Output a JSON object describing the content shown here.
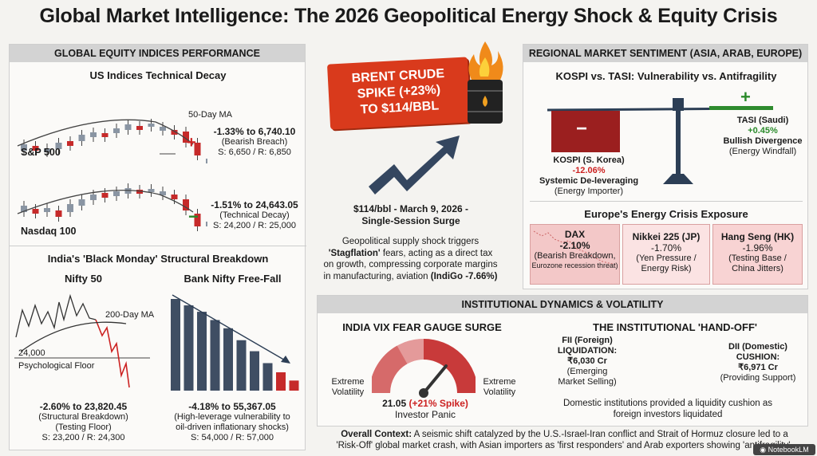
{
  "title": "Global Market Intelligence: The 2026 Geopolitical Energy Shock & Equity Crisis",
  "left": {
    "header": "GLOBAL EQUITY INDICES PERFORMANCE",
    "us_title": "US Indices Technical Decay",
    "ma_label": "50-Day MA",
    "sp500": {
      "name": "S&P 500",
      "change": "-1.33% to 6,740.10",
      "note": "(Bearish Breach)",
      "levels": "S: 6,650 / R: 6,850"
    },
    "nasdaq": {
      "name": "Nasdaq 100",
      "change": "-1.51% to 24,643.05",
      "note": "(Technical Decay)",
      "levels": "S: 24,200 / R: 25,000"
    },
    "india_title": "India's 'Black Monday' Structural Breakdown",
    "nifty": {
      "name": "Nifty 50",
      "ma": "200-Day MA",
      "floor_value": "24,000",
      "floor_label": "Psychological Floor",
      "change": "-2.60% to 23,820.45",
      "note": "(Structural Breakdown)",
      "note2": "(Testing Floor)",
      "levels": "S: 23,200 / R: 24,300"
    },
    "banknifty": {
      "name": "Bank Nifty Free-Fall",
      "change": "-4.18% to 55,367.05",
      "note": "(High-leverage vulnerability to",
      "note2": "oil-driven inflationary shocks)",
      "levels": "S: 54,000 / R: 57,000",
      "bars": [
        100,
        93,
        86,
        77,
        68,
        55,
        43,
        30,
        20,
        11
      ]
    }
  },
  "center": {
    "banner_l1": "BRENT CRUDE",
    "banner_l2": "SPIKE (+23%)",
    "banner_l3": "TO $114/BBL",
    "caption_l1": "$114/bbl - March 9, 2026 -",
    "caption_l2": "Single-Session Surge",
    "body_l1": "Geopolitical supply shock triggers",
    "body_l2_b": "'Stagflation'",
    "body_l2": " fears, acting as a direct tax",
    "body_l3": "on growth, compressing corporate margins",
    "body_l4": "in manufacturing, aviation ",
    "body_l4_b": "(IndiGo -7.66%)"
  },
  "right": {
    "header": "REGIONAL MARKET SENTIMENT (ASIA, ARAB, EUROPE)",
    "scale_title": "KOSPI vs. TASI: Vulnerability vs. Antifragility",
    "minus": "−",
    "plus": "+",
    "kospi": {
      "name": "KOSPI (S. Korea)",
      "change": "-12.06%",
      "l1": "Systemic De-leveraging",
      "l2": "(Energy Importer)"
    },
    "tasi": {
      "name": "TASI (Saudi)",
      "change": "+0.45%",
      "l1": "Bullish Divergence",
      "l2": "(Energy Windfall)"
    },
    "europe_title": "Europe's Energy Crisis Exposure",
    "dax": {
      "name": "DAX",
      "change": "-2.10%",
      "l1": "(Bearish Breakdown,",
      "l2": "Eurozone recession threat)"
    },
    "nikkei": {
      "name": "Nikkei 225 (JP)",
      "change": "-1.70%",
      "l1": "(Yen Pressure /",
      "l2": "Energy Risk)"
    },
    "hangseng": {
      "name": "Hang Seng (HK)",
      "change": "-1.96%",
      "l1": "(Testing Base /",
      "l2": "China Jitters)"
    }
  },
  "bottom": {
    "header": "INSTITUTIONAL DYNAMICS & VOLATILITY",
    "vix_title": "INDIA VIX FEAR GAUGE SURGE",
    "extreme_l1": "Extreme",
    "extreme_l2": "Volatility",
    "vix_value": "21.05 ",
    "vix_spike": "(+21% Spike)",
    "vix_label": "Investor Panic",
    "vix_fraction": 0.72,
    "handoff_title": "THE INSTITUTIONAL 'HAND-OFF'",
    "fii": {
      "l1": "FII (Foreign)",
      "l2": "LIQUIDATION:",
      "l3": "₹6,030 Cr",
      "l4": "(Emerging",
      "l5": "Market Selling)"
    },
    "dii": {
      "l1": "DII (Domestic)",
      "l2": "CUSHION:",
      "l3": "₹6,971 Cr",
      "l4": "(Providing Support)"
    },
    "handoff_note_l1": "Domestic institutions provided a liquidity cushion as",
    "handoff_note_l2": "foreign investors liquidated"
  },
  "footer": {
    "label": "Overall Context:",
    "l1": " A seismic shift catalyzed by the U.S.-Israel-Iran conflict and Strait of Hormuz closure led to a",
    "l2": "'Risk-Off' global market crash, with Asian importers as 'first responders' and Arab exporters showing 'antifragility'.",
    "watermark": "NotebookLM"
  }
}
